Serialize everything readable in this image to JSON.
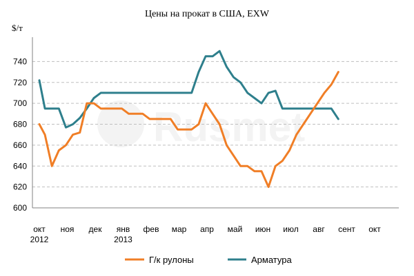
{
  "chart_data": {
    "type": "line",
    "title": "Цены на прокат в США, EXW",
    "ylabel": "$/т",
    "ylim": [
      600,
      760
    ],
    "yticks": [
      600,
      620,
      640,
      660,
      680,
      700,
      720,
      740
    ],
    "grid": true,
    "legend_position": "bottom",
    "watermark": "Rusmet",
    "months": [
      {
        "label": "окт",
        "year": "2012"
      },
      {
        "label": "ноя",
        "year": ""
      },
      {
        "label": "дек",
        "year": ""
      },
      {
        "label": "янв",
        "year": "2013"
      },
      {
        "label": "фев",
        "year": ""
      },
      {
        "label": "мар",
        "year": ""
      },
      {
        "label": "апр",
        "year": ""
      },
      {
        "label": "май",
        "year": ""
      },
      {
        "label": "июн",
        "year": ""
      },
      {
        "label": "июл",
        "year": ""
      },
      {
        "label": "авг",
        "year": ""
      },
      {
        "label": "сент",
        "year": ""
      },
      {
        "label": "окт",
        "year": ""
      }
    ],
    "series": [
      {
        "name": "Г/к рулоны",
        "color": "#f07e26",
        "x": [
          0,
          0.2,
          0.45,
          0.7,
          0.95,
          1.2,
          1.45,
          1.7,
          1.95,
          2.2,
          2.45,
          2.7,
          2.95,
          3.2,
          3.45,
          3.7,
          3.95,
          4.2,
          4.45,
          4.7,
          4.95,
          5.2,
          5.45,
          5.7,
          5.95,
          6.2,
          6.45,
          6.7,
          6.95,
          7.2,
          7.45,
          7.7,
          7.95,
          8.2,
          8.45,
          8.7,
          8.95,
          9.2,
          9.45,
          9.7,
          9.95,
          10.2,
          10.45,
          10.7
        ],
        "values": [
          680,
          670,
          640,
          655,
          660,
          670,
          672,
          700,
          700,
          695,
          695,
          695,
          695,
          690,
          690,
          690,
          685,
          685,
          685,
          685,
          675,
          675,
          675,
          680,
          700,
          690,
          680,
          660,
          650,
          640,
          640,
          635,
          635,
          620,
          640,
          645,
          655,
          670,
          680,
          690,
          700,
          710,
          718,
          730
        ]
      },
      {
        "name": "Арматура",
        "color": "#2e7f8c",
        "x": [
          0,
          0.2,
          0.45,
          0.7,
          0.95,
          1.2,
          1.45,
          1.7,
          1.95,
          2.2,
          2.45,
          2.7,
          2.95,
          3.2,
          3.45,
          3.7,
          3.95,
          4.2,
          4.45,
          4.7,
          4.95,
          5.2,
          5.45,
          5.7,
          5.95,
          6.2,
          6.45,
          6.7,
          6.95,
          7.2,
          7.45,
          7.7,
          7.95,
          8.2,
          8.45,
          8.7,
          8.95,
          9.2,
          9.45,
          9.7,
          9.95,
          10.2,
          10.45,
          10.7
        ],
        "values": [
          722,
          695,
          695,
          695,
          677,
          680,
          686,
          695,
          705,
          710,
          710,
          710,
          710,
          710,
          710,
          710,
          710,
          710,
          710,
          710,
          710,
          710,
          710,
          730,
          745,
          745,
          750,
          735,
          725,
          720,
          710,
          705,
          700,
          710,
          712,
          695,
          695,
          695,
          695,
          695,
          695,
          695,
          695,
          685
        ]
      }
    ]
  }
}
